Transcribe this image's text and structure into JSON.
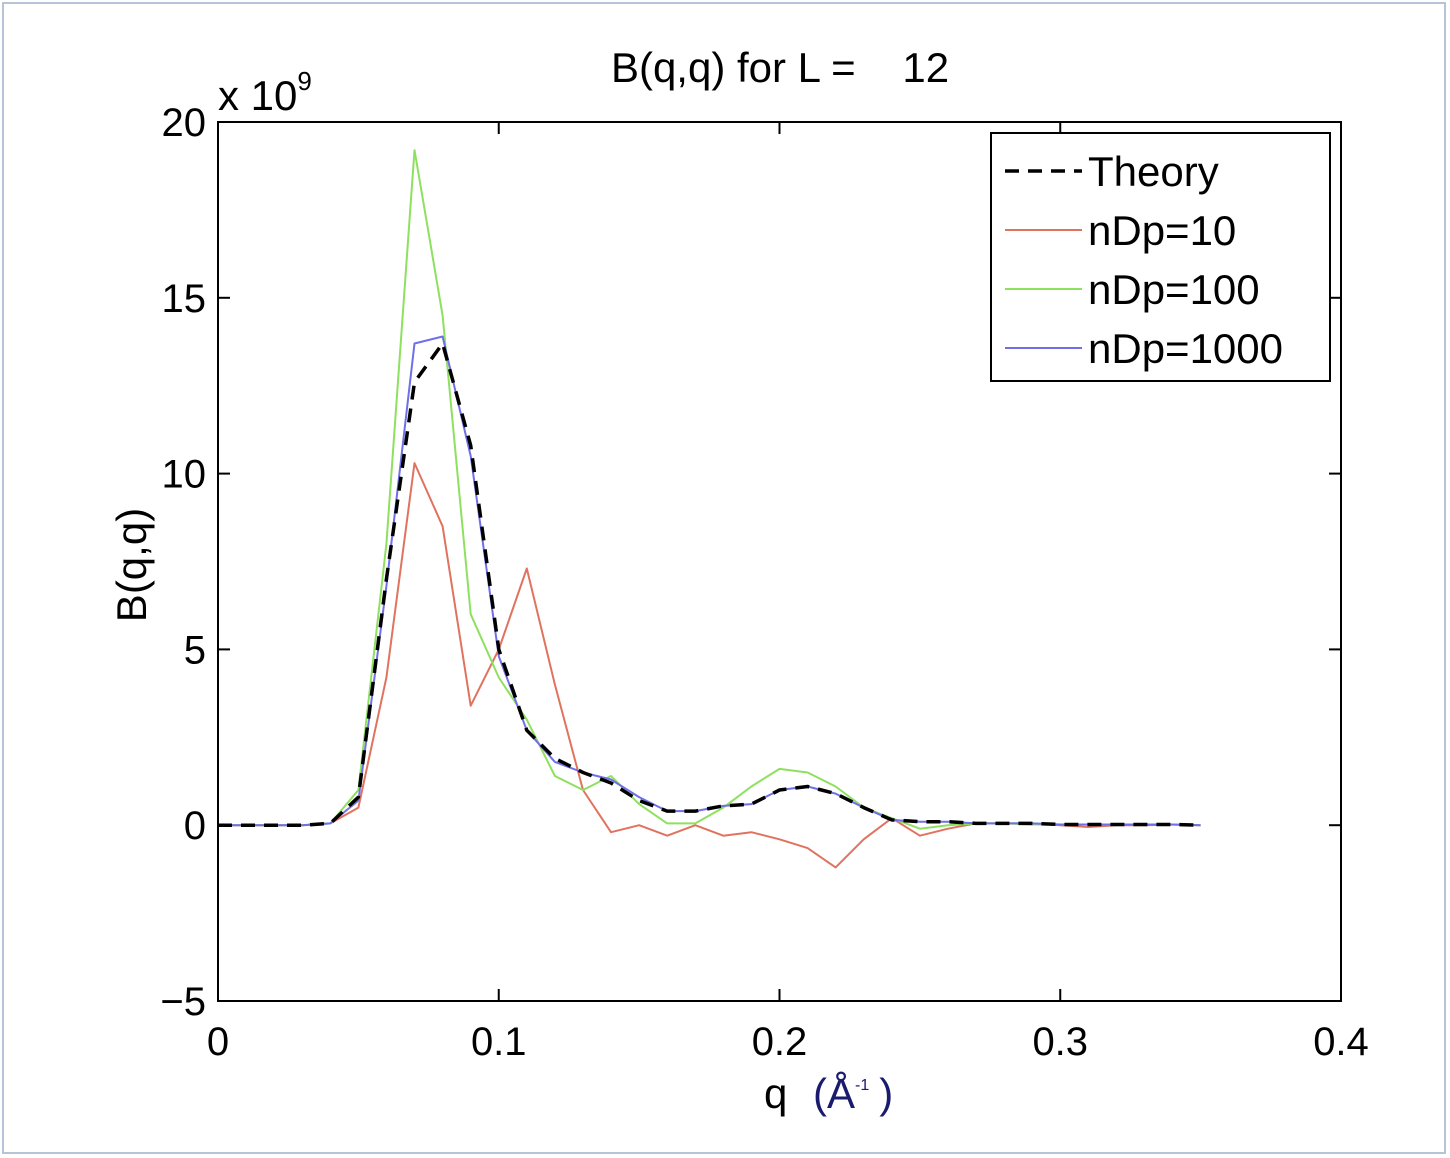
{
  "chart_data": {
    "type": "line",
    "title": "B(q,q) for L =    12",
    "xlabel_main": "q",
    "xlabel_unit_open": "(Å",
    "xlabel_unit_sup": "-1",
    "xlabel_unit_close": ")",
    "ylabel": "B(q,q)",
    "y_multiplier_base": "x 10",
    "y_multiplier_exp": "9",
    "xlim": [
      0,
      0.4
    ],
    "ylim": [
      -5,
      20
    ],
    "x_ticks": [
      0,
      0.1,
      0.2,
      0.3,
      0.4
    ],
    "x_tick_labels": [
      "0",
      "0.1",
      "0.2",
      "0.3",
      "0.4"
    ],
    "y_ticks": [
      -5,
      0,
      5,
      10,
      15,
      20
    ],
    "y_tick_labels": [
      "−5",
      "0",
      "5",
      "10",
      "15",
      "20"
    ],
    "legend_position": "top-right",
    "x": [
      0,
      0.01,
      0.02,
      0.03,
      0.04,
      0.05,
      0.06,
      0.07,
      0.08,
      0.09,
      0.1,
      0.11,
      0.12,
      0.13,
      0.14,
      0.15,
      0.16,
      0.17,
      0.18,
      0.19,
      0.2,
      0.21,
      0.22,
      0.23,
      0.24,
      0.25,
      0.26,
      0.27,
      0.28,
      0.29,
      0.3,
      0.31,
      0.32,
      0.33,
      0.34,
      0.35
    ],
    "series": [
      {
        "name": "Theory",
        "color": "#000000",
        "dash": "dashed",
        "values": [
          0,
          0,
          0,
          0,
          0.05,
          0.8,
          7.0,
          12.6,
          13.7,
          10.8,
          5.0,
          2.7,
          1.9,
          1.5,
          1.2,
          0.7,
          0.4,
          0.4,
          0.55,
          0.6,
          1.0,
          1.1,
          0.9,
          0.5,
          0.15,
          0.1,
          0.1,
          0.05,
          0.05,
          0.05,
          0.02,
          0.02,
          0.02,
          0.02,
          0.02,
          0
        ]
      },
      {
        "name": "nDp=10",
        "color": "#e0735f",
        "dash": "solid",
        "values": [
          0,
          0,
          0,
          0,
          0.05,
          0.5,
          4.2,
          10.3,
          8.5,
          3.4,
          5.0,
          7.3,
          4.0,
          1.0,
          -0.2,
          0.0,
          -0.3,
          0.0,
          -0.3,
          -0.2,
          -0.4,
          -0.65,
          -1.2,
          -0.4,
          0.2,
          -0.3,
          -0.1,
          0.05,
          0.05,
          0.05,
          0.0,
          -0.05,
          0.0,
          0.0,
          0.02,
          0
        ]
      },
      {
        "name": "nDp=100",
        "color": "#8ee05f",
        "dash": "solid",
        "values": [
          0,
          0,
          0,
          0,
          0.05,
          1.0,
          8.0,
          19.2,
          14.5,
          6.0,
          4.2,
          3.0,
          1.4,
          1.0,
          1.4,
          0.6,
          0.05,
          0.05,
          0.5,
          1.1,
          1.6,
          1.5,
          1.1,
          0.5,
          0.2,
          -0.1,
          0.0,
          0.05,
          0.05,
          0.02,
          0.02,
          0.02,
          0.02,
          0.02,
          0.02,
          0
        ]
      },
      {
        "name": "nDp=1000",
        "color": "#6f6fe8",
        "dash": "solid",
        "values": [
          0,
          0,
          0,
          0,
          0.05,
          0.7,
          6.8,
          13.7,
          13.9,
          10.5,
          4.8,
          2.7,
          1.8,
          1.5,
          1.3,
          0.8,
          0.4,
          0.4,
          0.55,
          0.6,
          1.0,
          1.1,
          0.9,
          0.5,
          0.15,
          0.1,
          0.1,
          0.05,
          0.05,
          0.05,
          0.02,
          0.02,
          0.02,
          0.02,
          0.02,
          0
        ]
      }
    ]
  }
}
